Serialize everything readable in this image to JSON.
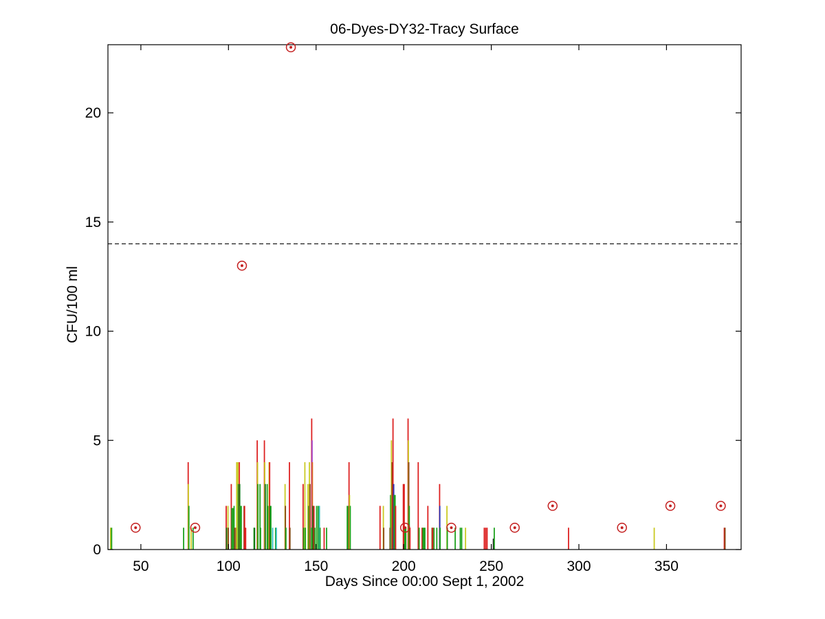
{
  "figure": {
    "title": "06-Dyes-DY32-Tracy Surface",
    "xlabel": "Days Since 00:00 Sept 1, 2002",
    "ylabel": "CFU/100 ml",
    "background": "#ffffff"
  },
  "chart_data": {
    "type": "bar",
    "subtype": "stem-plot-with-circled-markers",
    "title": "06-Dyes-DY32-Tracy Surface",
    "xlabel": "Days Since 00:00 Sept 1, 2002",
    "ylabel": "CFU/100 ml",
    "grid": false,
    "legend": "none",
    "x_axis": {
      "min": 31.2,
      "max": 392.6,
      "ticks": [
        50,
        100,
        150,
        200,
        250,
        300,
        350
      ]
    },
    "y_axis": {
      "min": 0,
      "max": 23.12,
      "ticks": [
        0,
        5,
        10,
        15,
        20
      ]
    },
    "threshold_line": {
      "y": 14,
      "style": "dashed",
      "color": "#1a1a1a",
      "dash": "6 4"
    },
    "series_colors": {
      "red": "#dd2020",
      "green": "#1ea11e",
      "darkgreen": "#156f15",
      "yellow": "#c9c922",
      "maroon": "#8a4513",
      "blue": "#2431b4",
      "cyan": "#2fbdbd",
      "magenta": "#a23ac0",
      "orange": "#e06818",
      "black": "#202020"
    },
    "marker_color": "#c42020",
    "stems": [
      [
        32.7,
        1,
        "yellow"
      ],
      [
        33.3,
        1,
        "green"
      ],
      [
        74.4,
        1,
        "green"
      ],
      [
        77.0,
        4,
        "red"
      ],
      [
        77.1,
        3,
        "yellow"
      ],
      [
        77.4,
        2,
        "green"
      ],
      [
        78.7,
        1,
        "yellow"
      ],
      [
        79.8,
        1,
        "green"
      ],
      [
        98.7,
        2,
        "red"
      ],
      [
        98.9,
        1,
        "darkgreen"
      ],
      [
        99.7,
        2,
        "yellow"
      ],
      [
        99.9,
        1,
        "maroon"
      ],
      [
        101.6,
        3,
        "red"
      ],
      [
        101.9,
        1.9,
        "green"
      ],
      [
        102.6,
        1.9,
        "green"
      ],
      [
        103.2,
        2,
        "green"
      ],
      [
        103.6,
        1,
        "maroon"
      ],
      [
        104.4,
        1,
        "maroon"
      ],
      [
        104.7,
        4,
        "yellow"
      ],
      [
        105.4,
        4,
        "yellow"
      ],
      [
        105.6,
        3,
        "green"
      ],
      [
        106.2,
        4,
        "red"
      ],
      [
        106.4,
        3,
        "darkgreen"
      ],
      [
        106.6,
        2,
        "green"
      ],
      [
        107.3,
        2,
        "green"
      ],
      [
        108.9,
        2,
        "maroon"
      ],
      [
        109.2,
        2,
        "red"
      ],
      [
        109.8,
        1,
        "red"
      ],
      [
        114.6,
        1,
        "green"
      ],
      [
        114.9,
        1,
        "darkgreen"
      ],
      [
        116.4,
        5,
        "red"
      ],
      [
        116.6,
        4,
        "yellow"
      ],
      [
        116.8,
        3,
        "green"
      ],
      [
        118.0,
        3,
        "green"
      ],
      [
        118.3,
        1,
        "green"
      ],
      [
        120.5,
        5,
        "red"
      ],
      [
        120.7,
        4,
        "yellow"
      ],
      [
        121.0,
        3,
        "darkgreen"
      ],
      [
        122.1,
        3,
        "green"
      ],
      [
        122.5,
        2,
        "green"
      ],
      [
        123.2,
        4,
        "yellow"
      ],
      [
        123.5,
        4,
        "red"
      ],
      [
        123.8,
        2,
        "darkgreen"
      ],
      [
        124.2,
        2,
        "green"
      ],
      [
        125.2,
        1,
        "cyan"
      ],
      [
        126.9,
        1,
        "green"
      ],
      [
        127.3,
        1,
        "cyan"
      ],
      [
        132.3,
        3,
        "yellow"
      ],
      [
        132.5,
        2,
        "maroon"
      ],
      [
        132.8,
        1,
        "green"
      ],
      [
        134.8,
        4,
        "red"
      ],
      [
        135.1,
        1,
        "maroon"
      ],
      [
        142.6,
        3,
        "red"
      ],
      [
        142.9,
        1,
        "green"
      ],
      [
        143.6,
        4,
        "yellow"
      ],
      [
        143.9,
        1,
        "green"
      ],
      [
        145.4,
        3,
        "yellow"
      ],
      [
        145.8,
        2,
        "darkgreen"
      ],
      [
        146.2,
        4,
        "yellow"
      ],
      [
        146.5,
        3,
        "maroon"
      ],
      [
        147.5,
        6,
        "red"
      ],
      [
        147.7,
        5,
        "magenta"
      ],
      [
        147.9,
        4,
        "orange"
      ],
      [
        148.2,
        2,
        "darkgreen"
      ],
      [
        148.8,
        2,
        "red"
      ],
      [
        147.4,
        1,
        "green"
      ],
      [
        149.3,
        1,
        "green"
      ],
      [
        150.3,
        2,
        "green"
      ],
      [
        151.2,
        2,
        "green"
      ],
      [
        151.9,
        2,
        "cyan"
      ],
      [
        152.3,
        1,
        "green"
      ],
      [
        154.6,
        1,
        "red"
      ],
      [
        156.0,
        1,
        "green"
      ],
      [
        167.8,
        2,
        "green"
      ],
      [
        168.4,
        2,
        "green"
      ],
      [
        168.8,
        4,
        "red"
      ],
      [
        169.1,
        2.5,
        "yellow"
      ],
      [
        169.5,
        2,
        "green"
      ],
      [
        186.5,
        2,
        "red"
      ],
      [
        188.4,
        2,
        "yellow"
      ],
      [
        188.6,
        1,
        "maroon"
      ],
      [
        192.2,
        1,
        "maroon"
      ],
      [
        192.5,
        2.5,
        "green"
      ],
      [
        192.8,
        1,
        "blue"
      ],
      [
        193.0,
        5,
        "yellow"
      ],
      [
        193.4,
        4,
        "maroon"
      ],
      [
        193.9,
        6,
        "red"
      ],
      [
        194.3,
        3,
        "blue"
      ],
      [
        194.6,
        2.5,
        "green"
      ],
      [
        195.1,
        2.5,
        "green"
      ],
      [
        195.4,
        2,
        "red"
      ],
      [
        199.8,
        3,
        "red"
      ],
      [
        200.3,
        3,
        "red"
      ],
      [
        200.6,
        1,
        "green"
      ],
      [
        201.2,
        1,
        "green"
      ],
      [
        202.5,
        6,
        "red"
      ],
      [
        202.7,
        5,
        "yellow"
      ],
      [
        202.9,
        4,
        "maroon"
      ],
      [
        203.2,
        2,
        "green"
      ],
      [
        203.6,
        1,
        "red"
      ],
      [
        208.3,
        4,
        "red"
      ],
      [
        208.8,
        1,
        "green"
      ],
      [
        210.5,
        1,
        "red"
      ],
      [
        211.0,
        1,
        "green"
      ],
      [
        211.6,
        1,
        "green"
      ],
      [
        212.1,
        1,
        "green"
      ],
      [
        213.8,
        2,
        "red"
      ],
      [
        216.2,
        1,
        "maroon"
      ],
      [
        216.6,
        1,
        "red"
      ],
      [
        217.3,
        1,
        "green"
      ],
      [
        218.9,
        1,
        "green"
      ],
      [
        220.5,
        3,
        "red"
      ],
      [
        220.6,
        2,
        "blue"
      ],
      [
        220.8,
        1,
        "green"
      ],
      [
        224.7,
        2,
        "yellow"
      ],
      [
        224.9,
        1,
        "green"
      ],
      [
        229.4,
        1,
        "green"
      ],
      [
        232.3,
        1,
        "green"
      ],
      [
        233.1,
        1,
        "green"
      ],
      [
        235.3,
        1,
        "yellow"
      ],
      [
        246.0,
        1,
        "red"
      ],
      [
        246.8,
        1,
        "red"
      ],
      [
        247.6,
        1,
        "red"
      ],
      [
        251.2,
        0.5,
        "black"
      ],
      [
        251.7,
        1,
        "green"
      ],
      [
        294.1,
        1,
        "red"
      ],
      [
        343.0,
        1,
        "yellow"
      ],
      [
        383.0,
        1,
        "red"
      ],
      [
        383.4,
        1,
        "maroon"
      ]
    ],
    "circled_points": [
      [
        47,
        1
      ],
      [
        81,
        1
      ],
      [
        107.7,
        13
      ],
      [
        135.6,
        23
      ],
      [
        200.8,
        1
      ],
      [
        227.2,
        1
      ],
      [
        263.4,
        1
      ],
      [
        285,
        2
      ],
      [
        324.6,
        1
      ],
      [
        352.2,
        2
      ],
      [
        381,
        2
      ]
    ]
  }
}
